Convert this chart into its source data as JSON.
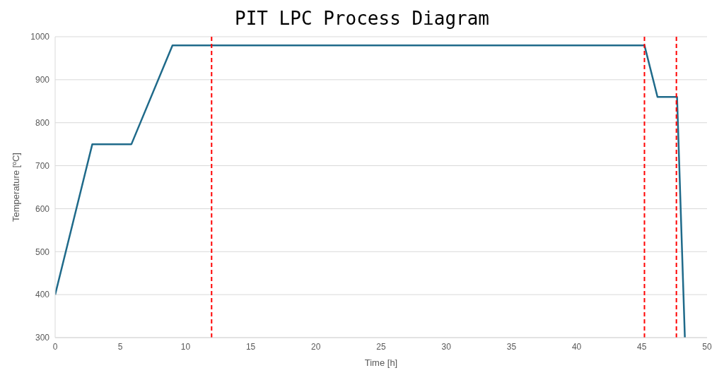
{
  "chart_data": {
    "type": "line",
    "title": "PIT LPC Process Diagram",
    "xlabel": "Time [h]",
    "ylabel": "Temperature [ºC]",
    "x": [
      0,
      2.85,
      5.85,
      9,
      45.2,
      46.2,
      47.7,
      48.3
    ],
    "series": [
      {
        "color": "#1f6a8a",
        "values": [
          400,
          750,
          750,
          980,
          980,
          860,
          860,
          300
        ]
      }
    ],
    "xlim": [
      0,
      50
    ],
    "xticks": [
      0,
      5,
      10,
      15,
      20,
      25,
      30,
      35,
      40,
      45,
      50
    ],
    "ylim": [
      300,
      1000
    ],
    "yticks": [
      300,
      400,
      500,
      600,
      700,
      800,
      900,
      1000
    ],
    "grid": "y",
    "legend": false,
    "marker": "none",
    "line_style": "solid",
    "ref_lines": [
      {
        "axis": "x",
        "value": 12,
        "color": "#ff0000",
        "line_style": "dashed"
      },
      {
        "axis": "x",
        "value": 45.2,
        "color": "#ff0000",
        "line_style": "dashed"
      },
      {
        "axis": "x",
        "value": 47.65,
        "color": "#ff0000",
        "line_style": "dashed"
      }
    ]
  }
}
